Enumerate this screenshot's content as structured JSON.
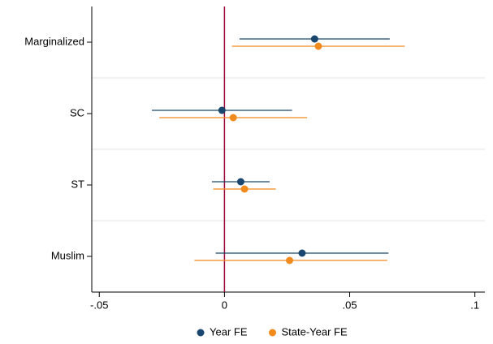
{
  "chart_data": {
    "type": "coefplot",
    "categories": [
      "Marginalized",
      "SC",
      "ST",
      "Muslim"
    ],
    "series": [
      {
        "name": "Year FE",
        "color": "#1a476f",
        "values": [
          0.036,
          -0.001,
          0.0065,
          0.031
        ],
        "lower": [
          0.006,
          -0.029,
          -0.005,
          -0.0035
        ],
        "upper": [
          0.066,
          0.027,
          0.018,
          0.0655
        ]
      },
      {
        "name": "State-Year FE",
        "color": "#f18b1e",
        "values": [
          0.0375,
          0.0035,
          0.008,
          0.026
        ],
        "lower": [
          0.003,
          -0.026,
          -0.0045,
          -0.012
        ],
        "upper": [
          0.072,
          0.033,
          0.0205,
          0.065
        ]
      }
    ],
    "xlim": [
      -0.053,
      0.104
    ],
    "xticks": [
      {
        "value": -0.05,
        "label": "-.05"
      },
      0,
      {
        "value": 0.05,
        "label": ".05"
      },
      {
        "value": 0.1,
        "label": ".1"
      }
    ],
    "refline": 0,
    "refline_color": "#990033",
    "legend": "bottom"
  }
}
